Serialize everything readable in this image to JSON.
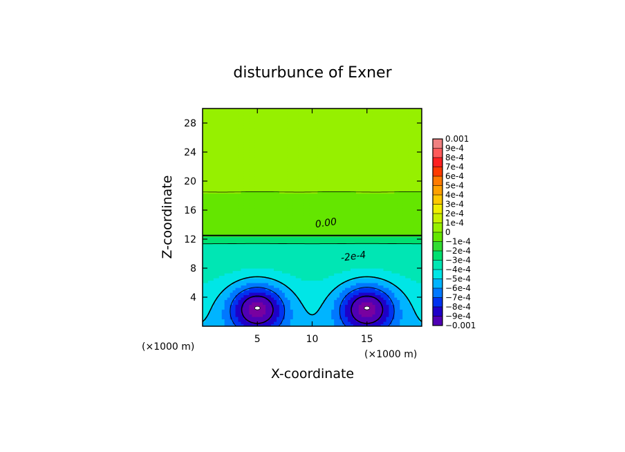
{
  "chart_data": {
    "type": "heatmap",
    "title": "disturbunce of Exner",
    "xlabel": "X-coordinate",
    "ylabel": "Z-coordinate",
    "x_unit_label": "(×1000 m)",
    "x_unit_label_secondary": "(×1000 m)",
    "xlim": [
      0,
      20
    ],
    "ylim": [
      0,
      30
    ],
    "x_ticks": [
      5,
      10,
      15
    ],
    "y_ticks": [
      4,
      8,
      12,
      16,
      20,
      24,
      28
    ],
    "x_tick_labels": [
      "5",
      "10",
      "15"
    ],
    "y_tick_labels": [
      "4",
      "8",
      "12",
      "16",
      "20",
      "24",
      "28"
    ],
    "colorbar": {
      "min": -0.001,
      "max": 0.001,
      "labels": [
        "0.001",
        "9e-4",
        "8e-4",
        "7e-4",
        "6e-4",
        "5e-4",
        "4e-4",
        "3e-4",
        "2e-4",
        "1e-4",
        "0",
        "−1e-4",
        "−2e-4",
        "−3e-4",
        "−4e-4",
        "−5e-4",
        "−6e-4",
        "−7e-4",
        "−8e-4",
        "−9e-4",
        "−0.001"
      ]
    },
    "contour_labels": [
      "0.00",
      "-2e-4"
    ],
    "field_features": [
      {
        "kind": "minimum",
        "x": 5,
        "z": 2.5,
        "value": -0.001
      },
      {
        "kind": "minimum",
        "x": 15,
        "z": 2.5,
        "value": -0.001
      },
      {
        "kind": "zero_contour_height",
        "x": 10,
        "z": 12.5,
        "value": 0
      },
      {
        "kind": "upper_band",
        "x": 10,
        "z": 24,
        "value": 0.0001
      }
    ]
  }
}
